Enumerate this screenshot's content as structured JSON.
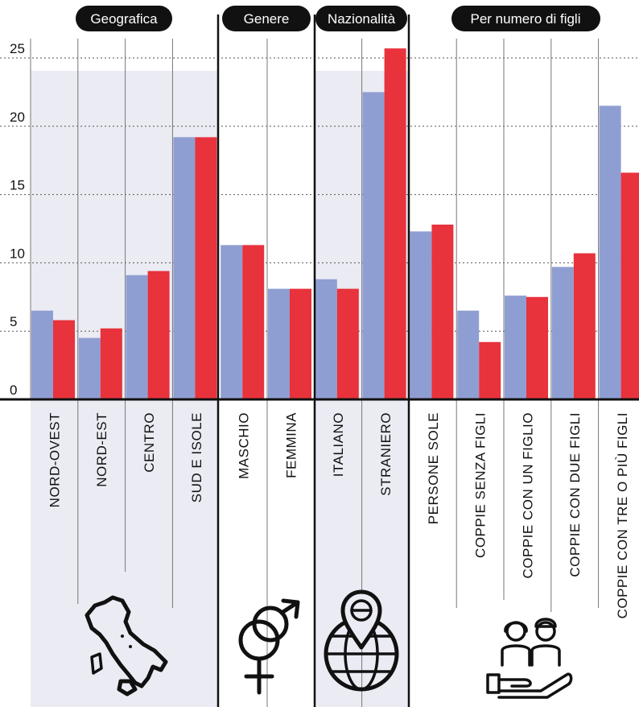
{
  "chart_data": {
    "type": "bar",
    "groups": [
      {
        "label": "Geografica",
        "categories": [
          "NORD-OVEST",
          "NORD-EST",
          "CENTRO",
          "SUD E ISOLE"
        ]
      },
      {
        "label": "Genere",
        "categories": [
          "MASCHIO",
          "FEMMINA"
        ]
      },
      {
        "label": "Nazionalità",
        "categories": [
          "ITALIANO",
          "STRANIERO"
        ]
      },
      {
        "label": "Per numero di figli",
        "categories": [
          "PERSONE SOLE",
          "COPPIE SENZA FIGLI",
          "COPPIE CON UN FIGLIO",
          "COPPIE CON DUE FIGLI",
          "COPPIE CON TRE O PIÙ FIGLI"
        ]
      }
    ],
    "categories": [
      "NORD-OVEST",
      "NORD-EST",
      "CENTRO",
      "SUD E ISOLE",
      "MASCHIO",
      "FEMMINA",
      "ITALIANO",
      "STRANIERO",
      "PERSONE SOLE",
      "COPPIE SENZA FIGLI",
      "COPPIE CON UN FIGLIO",
      "COPPIE CON DUE FIGLI",
      "COPPIE CON TRE O PIÙ FIGLI"
    ],
    "series": [
      {
        "color": "#8f9ed2",
        "values": [
          6.5,
          4.5,
          9.1,
          19.2,
          11.3,
          8.1,
          8.8,
          22.5,
          12.3,
          6.5,
          7.6,
          9.7,
          21.5
        ]
      },
      {
        "color": "#e8323c",
        "values": [
          5.8,
          5.2,
          9.4,
          19.2,
          11.3,
          8.1,
          8.1,
          25.7,
          12.8,
          4.2,
          7.5,
          10.7,
          16.6
        ]
      }
    ],
    "y_ticks": [
      "0",
      "5",
      "10",
      "15",
      "20",
      "25"
    ],
    "ylim": [
      0,
      25
    ],
    "grid": true,
    "icons": [
      "italy-map-icon",
      "gender-icon",
      "globe-pin-icon",
      "family-hand-icon"
    ]
  }
}
